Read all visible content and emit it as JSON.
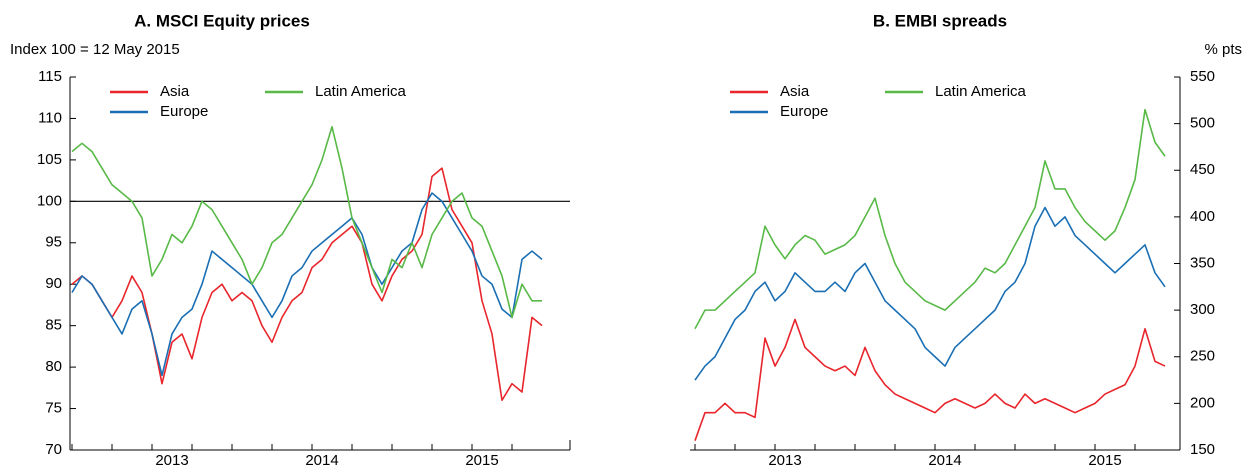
{
  "chart_data": [
    {
      "type": "line",
      "title": "A. MSCI Equity prices",
      "ylabel": "Index 100 = 12 May 2015",
      "yaxis_side": "left",
      "legend": "top-left",
      "categories": [
        null,
        null,
        null,
        null,
        null,
        null,
        null,
        null,
        null,
        null,
        "2013",
        null,
        null,
        null,
        null,
        null,
        null,
        null,
        null,
        null,
        null,
        null,
        null,
        null,
        null,
        "2014",
        null,
        null,
        null,
        null,
        null,
        null,
        null,
        null,
        null,
        null,
        null,
        null,
        null,
        null,
        null,
        "2015",
        null,
        null,
        null,
        null,
        null,
        null
      ],
      "ylim": [
        70,
        115
      ],
      "yticks": [
        70,
        75,
        80,
        85,
        90,
        95,
        100,
        105,
        110,
        115
      ],
      "hline": 100,
      "series": [
        {
          "name": "Asia",
          "color": "#e8262c",
          "values": [
            90,
            91,
            90,
            88,
            86,
            88,
            91,
            89,
            84,
            78,
            83,
            84,
            81,
            86,
            89,
            90,
            88,
            89,
            88,
            85,
            83,
            86,
            88,
            89,
            92,
            93,
            95,
            96,
            97,
            95,
            90,
            88,
            91,
            93,
            94,
            96,
            103,
            104,
            99,
            97,
            95,
            88,
            84,
            76,
            78,
            77,
            86,
            85
          ]
        },
        {
          "name": "Europe",
          "color": "#1a6fb4",
          "values": [
            89,
            91,
            90,
            88,
            86,
            84,
            87,
            88,
            84,
            79,
            84,
            86,
            87,
            90,
            94,
            93,
            92,
            91,
            90,
            88,
            86,
            88,
            91,
            92,
            94,
            95,
            96,
            97,
            98,
            96,
            92,
            90,
            92,
            94,
            95,
            99,
            101,
            100,
            98,
            96,
            94,
            91,
            90,
            87,
            86,
            93,
            94,
            93
          ]
        },
        {
          "name": "Latin America",
          "color": "#58b947",
          "values": [
            106,
            107,
            106,
            104,
            102,
            101,
            100,
            98,
            91,
            93,
            96,
            95,
            97,
            100,
            99,
            97,
            95,
            93,
            90,
            92,
            95,
            96,
            98,
            100,
            102,
            105,
            109,
            104,
            98,
            95,
            92,
            89,
            93,
            92,
            95,
            92,
            96,
            98,
            100,
            101,
            98,
            97,
            94,
            91,
            86,
            90,
            88,
            88
          ]
        }
      ]
    },
    {
      "type": "line",
      "title": "B. EMBI spreads",
      "ylabel": "% pts",
      "yaxis_side": "right",
      "legend": "top-left",
      "categories": [
        null,
        null,
        null,
        null,
        null,
        null,
        null,
        null,
        null,
        "2013",
        null,
        null,
        null,
        null,
        null,
        null,
        null,
        null,
        null,
        null,
        null,
        null,
        null,
        null,
        null,
        "2014",
        null,
        null,
        null,
        null,
        null,
        null,
        null,
        null,
        null,
        null,
        null,
        null,
        null,
        null,
        null,
        "2015",
        null,
        null,
        null,
        null,
        null,
        null
      ],
      "ylim": [
        150,
        550
      ],
      "yticks": [
        150,
        200,
        250,
        300,
        350,
        400,
        450,
        500,
        550
      ],
      "series": [
        {
          "name": "Asia",
          "color": "#e8262c",
          "values": [
            160,
            190,
            190,
            200,
            190,
            190,
            185,
            270,
            240,
            260,
            290,
            260,
            250,
            240,
            235,
            240,
            230,
            260,
            235,
            220,
            210,
            205,
            200,
            195,
            190,
            200,
            205,
            200,
            195,
            200,
            210,
            200,
            195,
            210,
            200,
            205,
            200,
            195,
            190,
            195,
            200,
            210,
            215,
            220,
            240,
            280,
            245,
            240
          ]
        },
        {
          "name": "Europe",
          "color": "#1a6fb4",
          "values": [
            225,
            240,
            250,
            270,
            290,
            300,
            320,
            330,
            310,
            320,
            340,
            330,
            320,
            320,
            330,
            320,
            340,
            350,
            330,
            310,
            300,
            290,
            280,
            260,
            250,
            240,
            260,
            270,
            280,
            290,
            300,
            320,
            330,
            350,
            390,
            410,
            390,
            400,
            380,
            370,
            360,
            350,
            340,
            350,
            360,
            370,
            340,
            325
          ]
        },
        {
          "name": "Latin America",
          "color": "#58b947",
          "values": [
            280,
            300,
            300,
            310,
            320,
            330,
            340,
            390,
            370,
            355,
            370,
            380,
            375,
            360,
            365,
            370,
            380,
            400,
            420,
            380,
            350,
            330,
            320,
            310,
            305,
            300,
            310,
            320,
            330,
            345,
            340,
            350,
            370,
            390,
            410,
            460,
            430,
            430,
            410,
            395,
            385,
            375,
            385,
            410,
            440,
            515,
            480,
            465
          ]
        }
      ]
    }
  ]
}
